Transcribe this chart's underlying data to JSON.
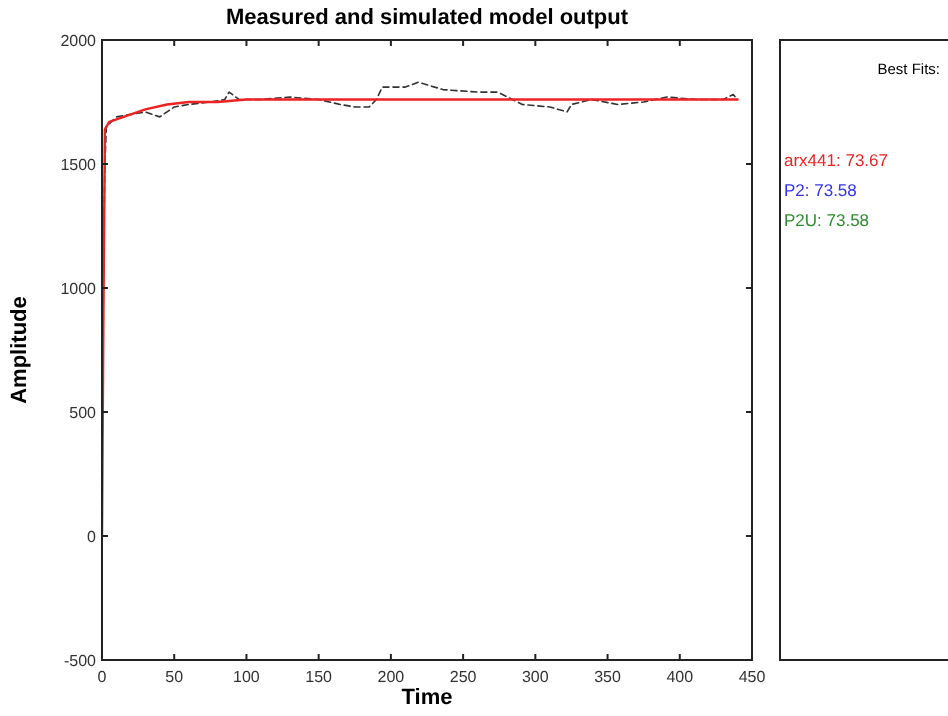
{
  "chart_data": {
    "type": "line",
    "title": "Measured and simulated model output",
    "xlabel": "Time",
    "ylabel": "Amplitude",
    "legend_title": "Best Fits:",
    "xlim": [
      0,
      450
    ],
    "ylim": [
      -500,
      2000
    ],
    "xticks": [
      0,
      50,
      100,
      150,
      200,
      250,
      300,
      350,
      400,
      450
    ],
    "yticks": [
      -500,
      0,
      500,
      1000,
      1500,
      2000
    ],
    "grid": false,
    "legend": "right",
    "line_style": "solid",
    "marker": "none",
    "series": [
      {
        "name": "P2U: 73.58",
        "color": "#2e8b2e"
      },
      {
        "name": "P2: 73.58",
        "color": "#3333ee"
      },
      {
        "type": "line",
        "color": "#333333",
        "line_style": "dashed",
        "x": [
          0,
          2,
          3,
          10,
          20,
          30,
          40,
          50,
          60,
          75,
          85,
          88,
          95,
          110,
          130,
          150,
          165,
          175,
          185,
          190,
          194,
          210,
          219,
          236,
          260,
          274,
          291,
          310,
          322,
          325,
          339,
          357,
          375,
          391,
          412,
          430,
          437,
          440
        ],
        "values": [
          700,
          1500,
          1650,
          1690,
          1700,
          1710,
          1690,
          1730,
          1740,
          1750,
          1760,
          1790,
          1760,
          1760,
          1770,
          1760,
          1740,
          1730,
          1730,
          1760,
          1810,
          1810,
          1830,
          1800,
          1790,
          1790,
          1740,
          1730,
          1710,
          1740,
          1760,
          1740,
          1750,
          1770,
          1760,
          1760,
          1780,
          1760
        ]
      },
      {
        "name": "arx441: 73.67",
        "color": "#ee2222",
        "x": [
          0,
          1,
          2,
          5,
          10,
          20,
          30,
          45,
          60,
          80,
          100,
          150,
          200,
          300,
          440
        ],
        "values": [
          0,
          900,
          1640,
          1670,
          1680,
          1700,
          1720,
          1740,
          1750,
          1750,
          1760,
          1760,
          1760,
          1760,
          1760
        ]
      }
    ]
  }
}
